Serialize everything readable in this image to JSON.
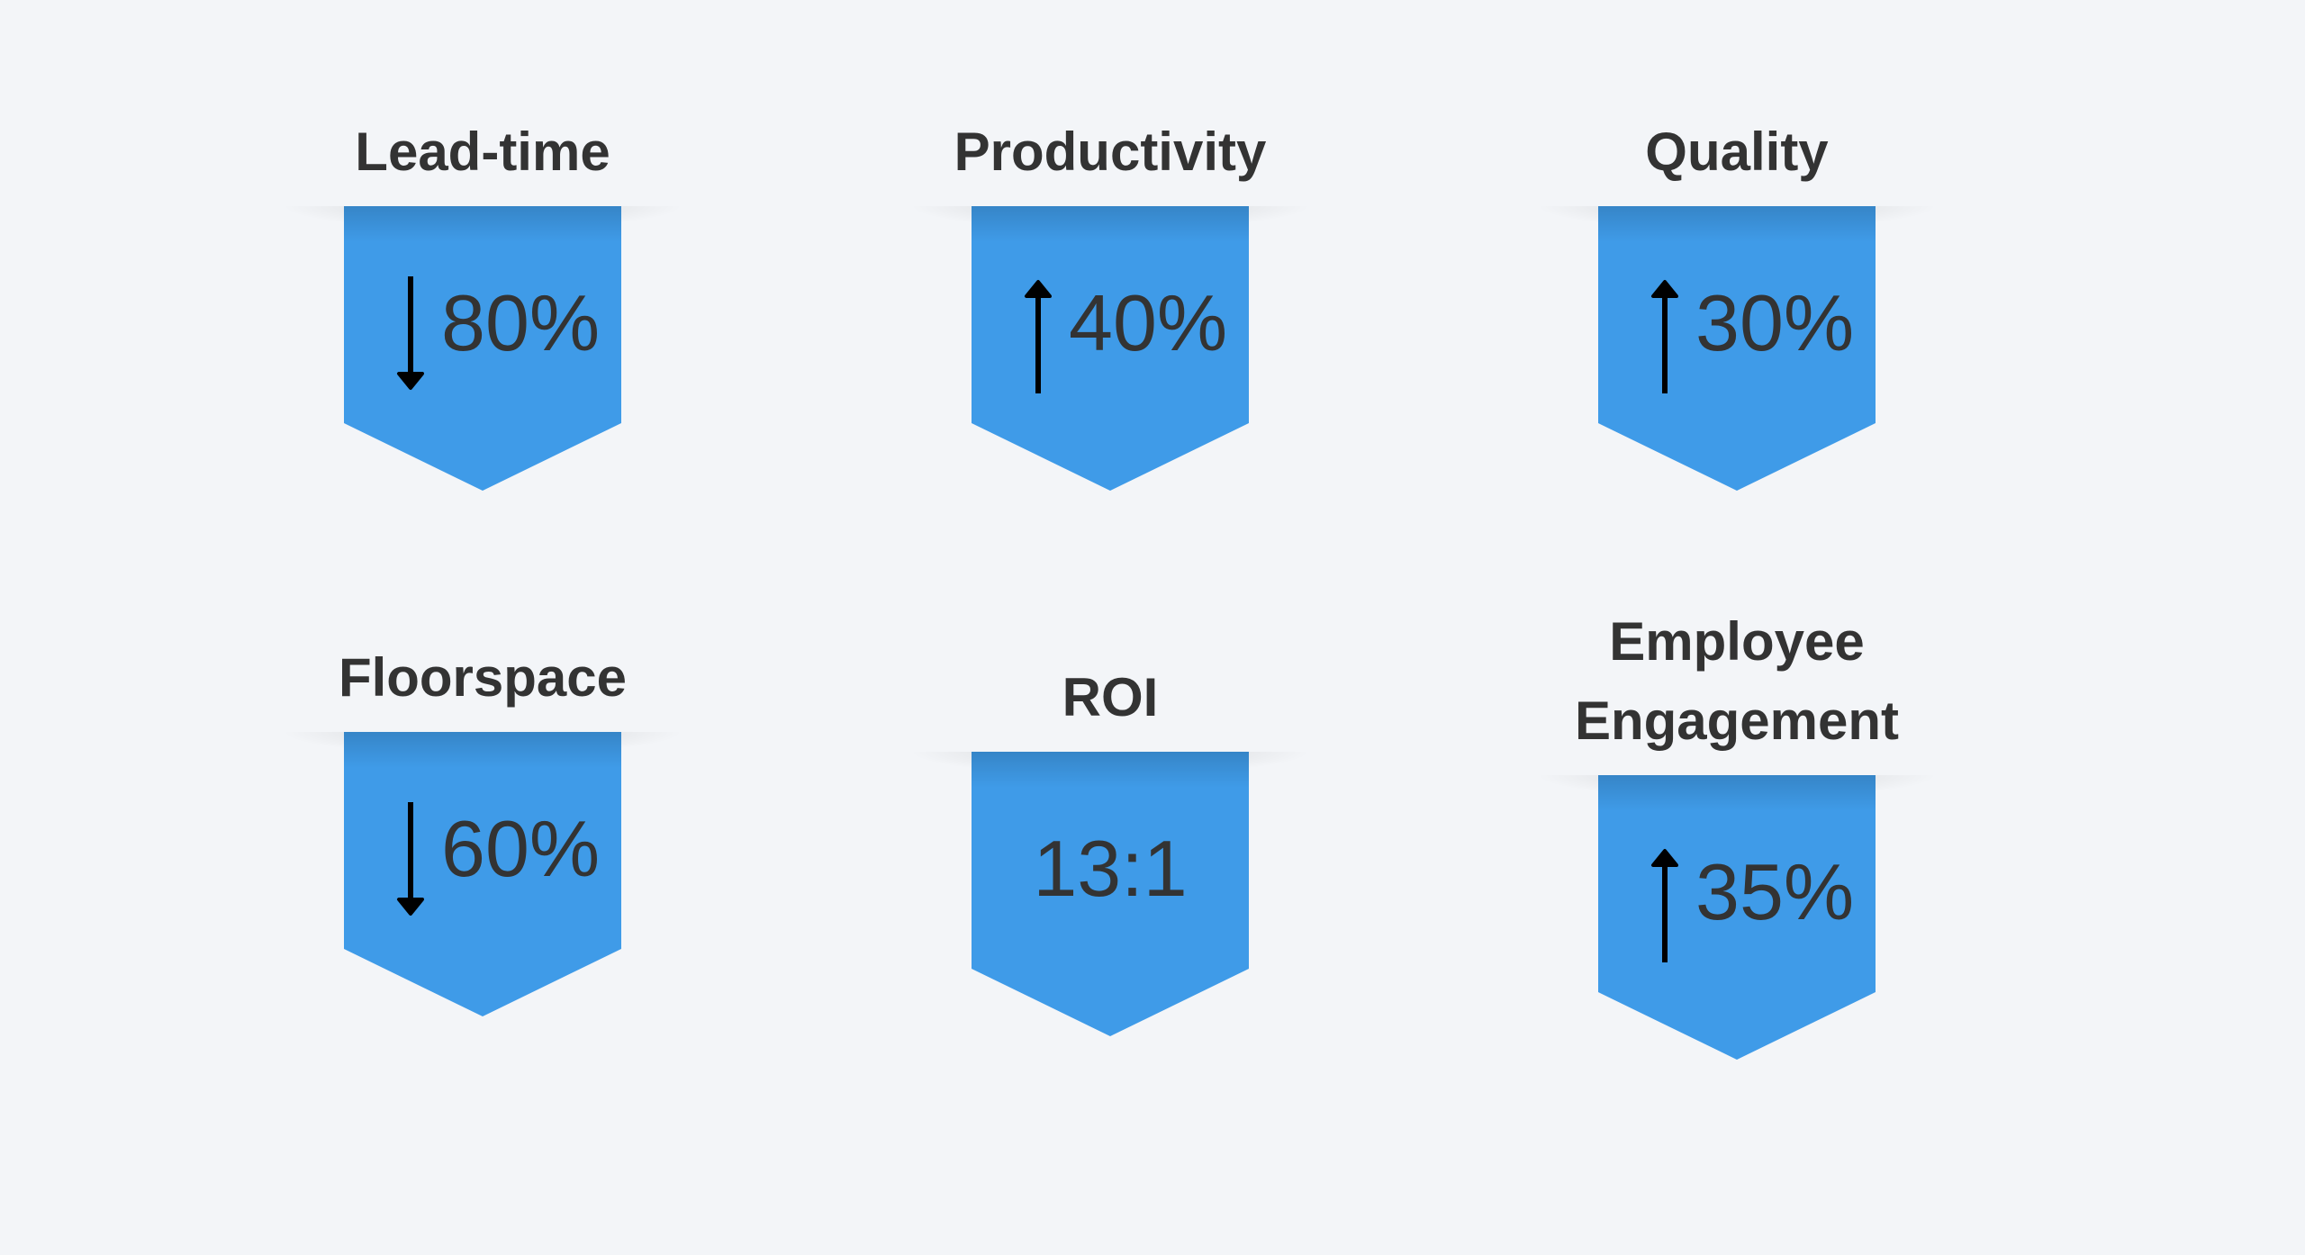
{
  "colors": {
    "banner": "#3f9be8",
    "background": "#f3f5f8",
    "text": "#333333"
  },
  "metrics": [
    {
      "title": "Lead-time",
      "value": "80%",
      "direction": "down",
      "icon": "arrow-down-icon"
    },
    {
      "title": "Productivity",
      "value": "40%",
      "direction": "up",
      "icon": "arrow-up-icon"
    },
    {
      "title": "Quality",
      "value": "30%",
      "direction": "up",
      "icon": "arrow-up-icon"
    },
    {
      "title": "Floorspace",
      "value": "60%",
      "direction": "down",
      "icon": "arrow-down-icon"
    },
    {
      "title": "ROI",
      "value": "13:1",
      "direction": "none"
    },
    {
      "title_lines": [
        "Employee",
        "Engagement"
      ],
      "value": "35%",
      "direction": "up",
      "icon": "arrow-up-icon"
    }
  ]
}
